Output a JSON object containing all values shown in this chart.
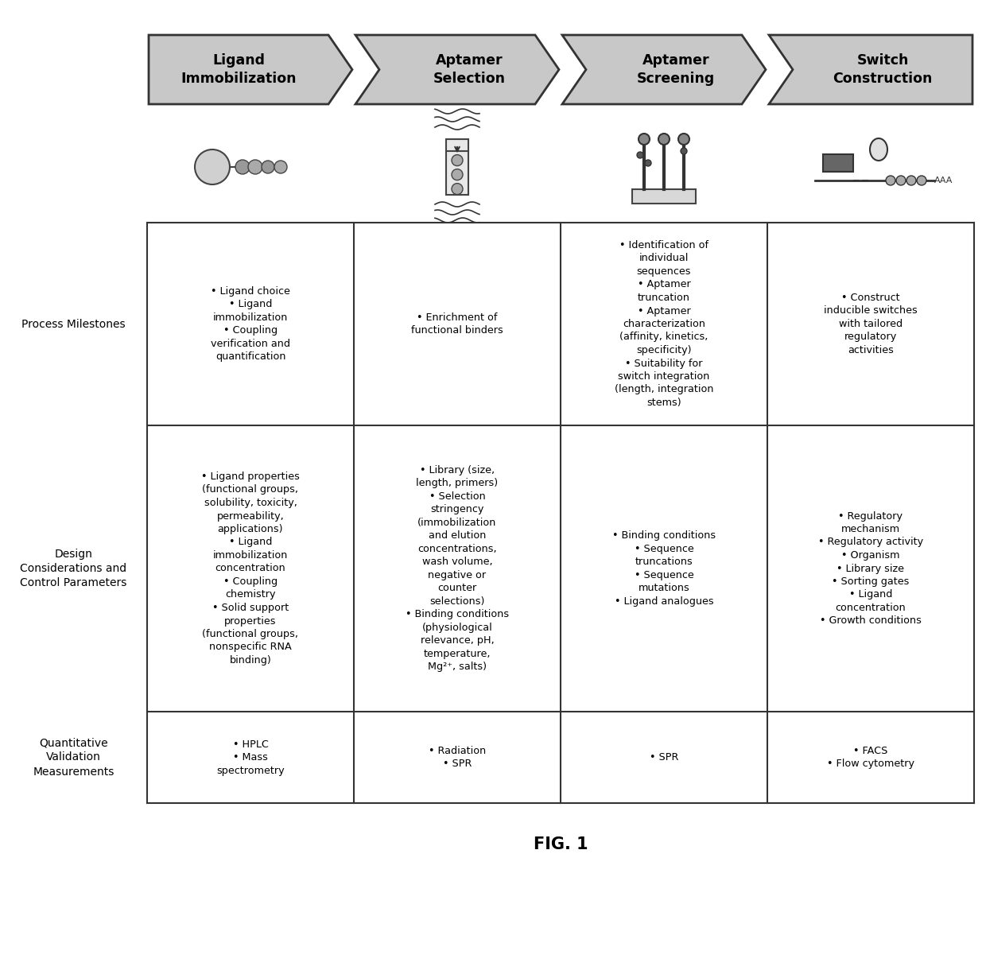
{
  "title": "FIG. 1",
  "bg_color": "#ffffff",
  "arrow_headers": [
    "Ligand\nImmobilization",
    "Aptamer\nSelection",
    "Aptamer\nScreening",
    "Switch\nConstruction"
  ],
  "row_labels": [
    "Process Milestones",
    "Design\nConsiderations and\nControl Parameters",
    "Quantitative\nValidation\nMeasurements"
  ],
  "cell_texts": {
    "row0": [
      "• Ligand choice\n• Ligand\nimmobilization\n• Coupling\nverification and\nquantification",
      "• Enrichment of\nfunctional binders",
      "• Identification of\nindividual\nsequences\n• Aptamer\ntruncation\n• Aptamer\ncharacterization\n(affinity, kinetics,\nspecificity)\n• Suitability for\nswitch integration\n(length, integration\nstems)",
      "• Construct\ninducible switches\nwith tailored\nregulatory\nactivities"
    ],
    "row1": [
      "• Ligand properties\n(functional groups,\nsolubility, toxicity,\npermeability,\napplications)\n• Ligand\nimmobilization\nconcentration\n• Coupling\nchemistry\n• Solid support\nproperties\n(functional groups,\nnonspecific RNA\nbinding)",
      "• Library (size,\nlength, primers)\n• Selection\nstringency\n(immobilization\nand elution\nconcentrations,\nwash volume,\nnegative or\ncounter\nselections)\n• Binding conditions\n(physiological\nrelevance, pH,\ntemperature,\nMg²⁺, salts)",
      "• Binding conditions\n• Sequence\ntruncations\n• Sequence\nmutations\n• Ligand analogues",
      "• Regulatory\nmechanism\n• Regulatory activity\n• Organism\n• Library size\n• Sorting gates\n• Ligand\nconcentration\n• Growth conditions"
    ],
    "row2": [
      "• HPLC\n• Mass\nspectrometry",
      "• Radiation\n• SPR",
      "• SPR",
      "• FACS\n• Flow cytometry"
    ]
  },
  "arrow_fill": "#c8c8c8",
  "arrow_edge": "#333333",
  "line_color": "#333333",
  "text_color": "#000000",
  "font_size_cell": 9.2,
  "font_size_header": 12.5,
  "font_size_rowlabel": 10.0,
  "font_size_title": 15
}
